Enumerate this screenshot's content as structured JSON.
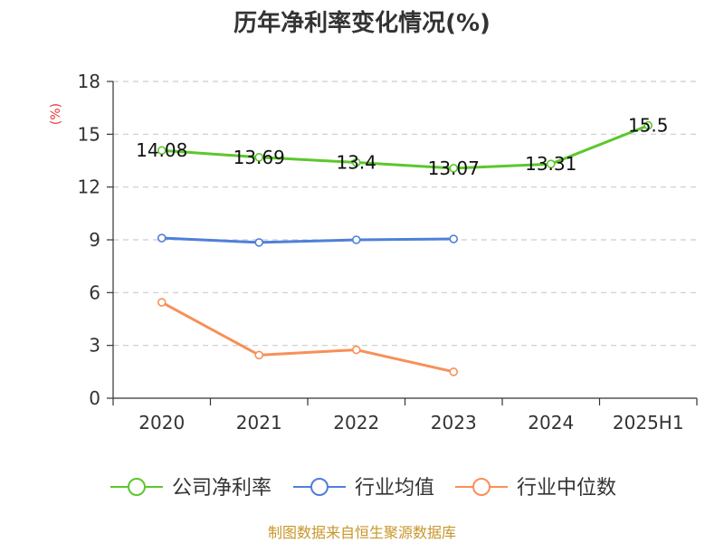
{
  "chart_data": {
    "type": "line",
    "title": "历年净利率变化情况(%)",
    "ylabel": "(%)",
    "xlabel": "",
    "ylim": [
      0,
      18
    ],
    "yticks": [
      0,
      3,
      6,
      9,
      12,
      15,
      18
    ],
    "categories": [
      "2020",
      "2021",
      "2022",
      "2023",
      "2024",
      "2025H1"
    ],
    "grid": true,
    "legend_position": "bottom",
    "series": [
      {
        "name": "公司净利率",
        "color": "#5cc72b",
        "values": [
          14.08,
          13.69,
          13.4,
          13.07,
          13.31,
          15.5
        ],
        "labels": [
          "14.08",
          "13.69",
          "13.4",
          "13.07",
          "13.31",
          "15.5"
        ]
      },
      {
        "name": "行业均值",
        "color": "#4f7fd9",
        "values": [
          9.1,
          8.85,
          9.0,
          9.05,
          null,
          null
        ]
      },
      {
        "name": "行业中位数",
        "color": "#f79058",
        "values": [
          5.45,
          2.45,
          2.75,
          1.5,
          null,
          null
        ]
      }
    ]
  },
  "footer": {
    "source": "制图数据来自恒生聚源数据库"
  }
}
